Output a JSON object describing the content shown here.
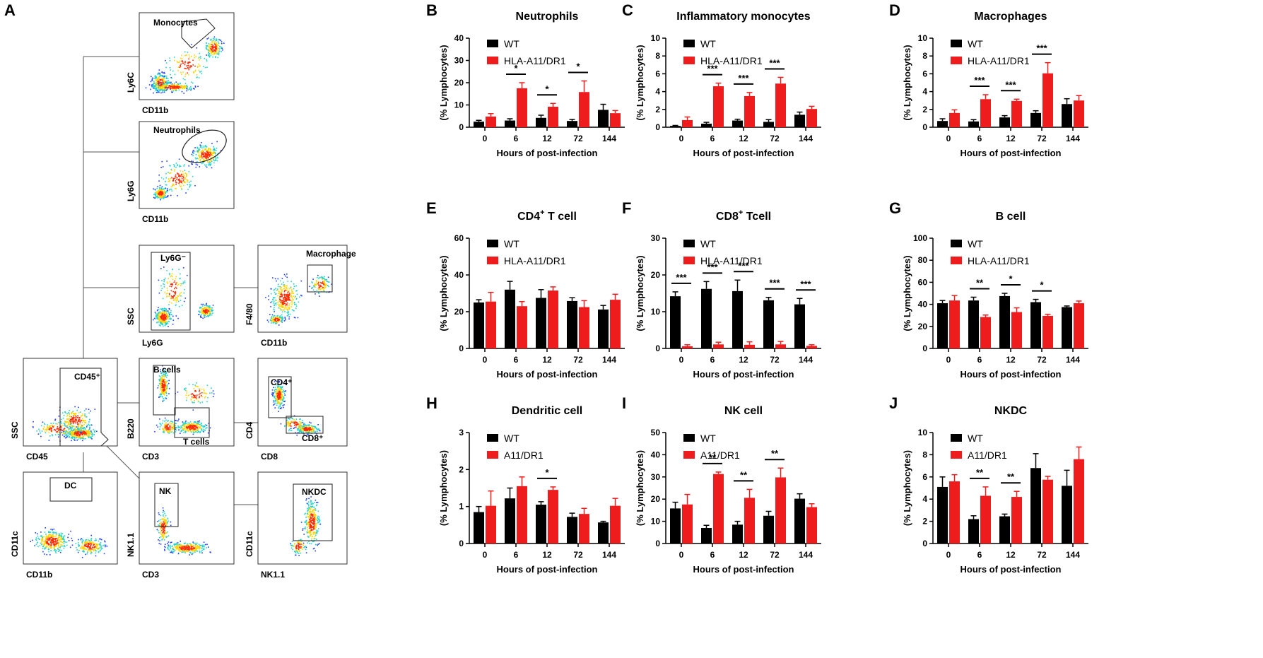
{
  "figure": {
    "panel_A": {
      "label": "A",
      "plots": [
        {
          "id": "mono",
          "gate_label": "Monocytes",
          "xlabel": "CD11b",
          "ylabel": "Ly6C"
        },
        {
          "id": "neut",
          "gate_label": "Neutrophils",
          "xlabel": "CD11b",
          "ylabel": "Ly6G"
        },
        {
          "id": "ly6gneg",
          "gate_label": "Ly6G⁻",
          "xlabel": "Ly6G",
          "ylabel": "SSC"
        },
        {
          "id": "macro",
          "gate_label": "Macrophage",
          "xlabel": "CD11b",
          "ylabel": "F4/80"
        },
        {
          "id": "cd45",
          "gate_label": "CD45⁺",
          "xlabel": "CD45",
          "ylabel": "SSC"
        },
        {
          "id": "bt",
          "gate_label": "B cells",
          "gate_label2": "T cells",
          "xlabel": "CD3",
          "ylabel": "B220"
        },
        {
          "id": "cd48",
          "gate_label": "CD4⁺",
          "gate_label2": "CD8⁺",
          "xlabel": "CD8",
          "ylabel": "CD4"
        },
        {
          "id": "dc",
          "gate_label": "DC",
          "xlabel": "CD11b",
          "ylabel": "CD11c"
        },
        {
          "id": "nk",
          "gate_label": "NK",
          "xlabel": "CD3",
          "ylabel": "NK1.1"
        },
        {
          "id": "nkdc",
          "gate_label": "NKDC",
          "xlabel": "NK1.1",
          "ylabel": "CD11c"
        }
      ]
    }
  },
  "chart_data": [
    {
      "panel": "B",
      "type": "bar",
      "title": "Neutrophils",
      "ylim": [
        0,
        40
      ],
      "yticks": [
        0,
        10,
        20,
        30,
        40
      ],
      "categories": [
        "0",
        "6",
        "12",
        "72",
        "144"
      ],
      "xlabel": "Hours of post-infection",
      "ylabel": "(% Lymphocytes)",
      "legend": [
        "WT",
        "HLA-A11/DR1"
      ],
      "series": [
        {
          "name": "WT",
          "color": "#000000",
          "values": [
            2.5,
            3,
            4.2,
            2.8,
            7.8
          ],
          "errors": [
            0.6,
            0.8,
            1.2,
            0.7,
            2.5
          ]
        },
        {
          "name": "HLA-A11/DR1",
          "color": "#ee1c1c",
          "values": [
            4.8,
            17.5,
            9.2,
            15.8,
            6.3
          ],
          "errors": [
            1.3,
            2.5,
            1.5,
            5,
            1.2
          ]
        }
      ],
      "significance": [
        {
          "index": 1,
          "label": "*"
        },
        {
          "index": 2,
          "label": "*"
        },
        {
          "index": 3,
          "label": "*"
        }
      ]
    },
    {
      "panel": "C",
      "type": "bar",
      "title": "Inflammatory monocytes",
      "ylim": [
        0,
        10
      ],
      "yticks": [
        0,
        2,
        4,
        6,
        8,
        10
      ],
      "categories": [
        "0",
        "6",
        "12",
        "72",
        "144"
      ],
      "xlabel": "Hours of post-infection",
      "ylabel": "(% Lymphocytes)",
      "legend": [
        "WT",
        "HLA-A11/DR1"
      ],
      "series": [
        {
          "name": "WT",
          "color": "#000000",
          "values": [
            0.15,
            0.4,
            0.75,
            0.6,
            1.4
          ],
          "errors": [
            0.05,
            0.15,
            0.15,
            0.25,
            0.3
          ]
        },
        {
          "name": "HLA-A11/DR1",
          "color": "#ee1c1c",
          "values": [
            0.8,
            4.6,
            3.5,
            4.9,
            2.05
          ],
          "errors": [
            0.35,
            0.35,
            0.4,
            0.7,
            0.3
          ]
        }
      ],
      "significance": [
        {
          "index": 1,
          "label": "***"
        },
        {
          "index": 2,
          "label": "***"
        },
        {
          "index": 3,
          "label": "***"
        }
      ]
    },
    {
      "panel": "D",
      "type": "bar",
      "title": "Macrophages",
      "ylim": [
        0,
        10
      ],
      "yticks": [
        0,
        2,
        4,
        6,
        8,
        10
      ],
      "categories": [
        "0",
        "6",
        "12",
        "72",
        "144"
      ],
      "xlabel": "Hours of post-infection",
      "ylabel": "(% Lymphocytes)",
      "legend": [
        "WT",
        "HLA-A11/DR1"
      ],
      "series": [
        {
          "name": "WT",
          "color": "#000000",
          "values": [
            0.7,
            0.65,
            1.1,
            1.6,
            2.6
          ],
          "errors": [
            0.25,
            0.2,
            0.2,
            0.25,
            0.6
          ]
        },
        {
          "name": "HLA-A11/DR1",
          "color": "#ee1c1c",
          "values": [
            1.6,
            3.15,
            2.95,
            6.05,
            3.0
          ],
          "errors": [
            0.35,
            0.5,
            0.2,
            1.2,
            0.55
          ]
        }
      ],
      "significance": [
        {
          "index": 1,
          "label": "***"
        },
        {
          "index": 2,
          "label": "***"
        },
        {
          "index": 3,
          "label": "***"
        }
      ]
    },
    {
      "panel": "E",
      "type": "bar",
      "title": "CD4",
      "title_sup": "+",
      "title_rest": " T cell",
      "ylim": [
        0,
        60
      ],
      "yticks": [
        0,
        20,
        40,
        60
      ],
      "categories": [
        "0",
        "6",
        "12",
        "72",
        "144"
      ],
      "xlabel": "Hours of post-infection",
      "ylabel": "(% Lymphocytes)",
      "legend": [
        "WT",
        "HLA-A11/DR1"
      ],
      "series": [
        {
          "name": "WT",
          "color": "#000000",
          "values": [
            25,
            32,
            27.5,
            25.8,
            21.2
          ],
          "errors": [
            1.5,
            4.5,
            4.5,
            1.8,
            2.2
          ]
        },
        {
          "name": "HLA-A11/DR1",
          "color": "#ee1c1c",
          "values": [
            25.5,
            23,
            31.5,
            22.5,
            26.5
          ],
          "errors": [
            5,
            2.5,
            2,
            3.5,
            3
          ]
        }
      ],
      "significance": []
    },
    {
      "panel": "F",
      "type": "bar",
      "title": "CD8",
      "title_sup": "+",
      "title_rest": " Tcell",
      "ylim": [
        0,
        30
      ],
      "yticks": [
        0,
        10,
        20,
        30
      ],
      "categories": [
        "0",
        "6",
        "12",
        "72",
        "144"
      ],
      "xlabel": "Hours of post-infection",
      "ylabel": "(% Lymphocytes)",
      "legend": [
        "WT",
        "HLA-A11/DR1"
      ],
      "series": [
        {
          "name": "WT",
          "color": "#000000",
          "values": [
            14.2,
            16.2,
            15.6,
            13.1,
            12
          ],
          "errors": [
            1.2,
            2,
            3,
            0.8,
            1.6
          ]
        },
        {
          "name": "HLA-A11/DR1",
          "color": "#ee1c1c",
          "values": [
            0.6,
            1.1,
            1.0,
            1.1,
            0.7
          ],
          "errors": [
            0.4,
            0.6,
            0.8,
            0.8,
            0.3
          ]
        }
      ],
      "significance": [
        {
          "index": 0,
          "label": "***"
        },
        {
          "index": 1,
          "label": "***"
        },
        {
          "index": 2,
          "label": "***"
        },
        {
          "index": 3,
          "label": "***"
        },
        {
          "index": 4,
          "label": "***"
        }
      ]
    },
    {
      "panel": "G",
      "type": "bar",
      "title": "B cell",
      "ylim": [
        0,
        100
      ],
      "yticks": [
        0,
        20,
        40,
        60,
        80,
        100
      ],
      "categories": [
        "0",
        "6",
        "12",
        "72",
        "144"
      ],
      "xlabel": "Hours of post-infection",
      "ylabel": "(% Lymphocytes)",
      "legend": [
        "WT",
        "HLA-A11/DR1"
      ],
      "series": [
        {
          "name": "WT",
          "color": "#000000",
          "values": [
            41,
            43.5,
            47.5,
            42,
            37.5
          ],
          "errors": [
            2.5,
            3,
            2.5,
            2.5,
            1
          ]
        },
        {
          "name": "HLA-A11/DR1",
          "color": "#ee1c1c",
          "values": [
            43.5,
            28.5,
            33,
            29.5,
            41
          ],
          "errors": [
            4.5,
            1.8,
            3.8,
            1.5,
            2
          ]
        }
      ],
      "significance": [
        {
          "index": 1,
          "label": "**"
        },
        {
          "index": 2,
          "label": "*"
        },
        {
          "index": 3,
          "label": "*"
        }
      ]
    },
    {
      "panel": "H",
      "type": "bar",
      "title": "Dendritic cell",
      "ylim": [
        0,
        3
      ],
      "yticks": [
        0,
        1,
        2,
        3
      ],
      "categories": [
        "0",
        "6",
        "12",
        "72",
        "144"
      ],
      "xlabel": "Hours of post-infection",
      "ylabel": "(% Lymphocytes)",
      "legend": [
        "WT",
        "A11/DR1"
      ],
      "series": [
        {
          "name": "WT",
          "color": "#000000",
          "values": [
            0.85,
            1.22,
            1.05,
            0.72,
            0.57
          ],
          "errors": [
            0.15,
            0.28,
            0.08,
            0.1,
            0.03
          ]
        },
        {
          "name": "A11/DR1",
          "color": "#ee1c1c",
          "values": [
            1.02,
            1.55,
            1.45,
            0.8,
            1.02
          ],
          "errors": [
            0.4,
            0.25,
            0.08,
            0.15,
            0.2
          ]
        }
      ],
      "significance": [
        {
          "index": 2,
          "label": "*"
        }
      ]
    },
    {
      "panel": "I",
      "type": "bar",
      "title": "NK cell",
      "ylim": [
        0,
        50
      ],
      "yticks": [
        0,
        10,
        20,
        30,
        40,
        50
      ],
      "categories": [
        "0",
        "6",
        "12",
        "72",
        "144"
      ],
      "xlabel": "Hours of post-infection",
      "ylabel": "(% Lymphocytes)",
      "legend": [
        "WT",
        "A11/DR1"
      ],
      "series": [
        {
          "name": "WT",
          "color": "#000000",
          "values": [
            15.8,
            7,
            8.5,
            12.5,
            20.2
          ],
          "errors": [
            2.8,
            1.2,
            1.5,
            2,
            2.2
          ]
        },
        {
          "name": "A11/DR1",
          "color": "#ee1c1c",
          "values": [
            17.6,
            31.3,
            20.6,
            29.8,
            16.4
          ],
          "errors": [
            4.5,
            0.9,
            3.8,
            4.2,
            1.5
          ]
        }
      ],
      "significance": [
        {
          "index": 1,
          "label": "**"
        },
        {
          "index": 2,
          "label": "**"
        },
        {
          "index": 3,
          "label": "**"
        }
      ]
    },
    {
      "panel": "J",
      "type": "bar",
      "title": "NKDC",
      "ylim": [
        0,
        10
      ],
      "yticks": [
        0,
        2,
        4,
        6,
        8,
        10
      ],
      "categories": [
        "0",
        "6",
        "12",
        "72",
        "144"
      ],
      "xlabel": "Hours of post-infection",
      "ylabel": "(% Lymphocytes)",
      "legend": [
        "WT",
        "A11/DR1"
      ],
      "series": [
        {
          "name": "WT",
          "color": "#000000",
          "values": [
            5.1,
            2.2,
            2.45,
            6.8,
            5.2
          ],
          "errors": [
            0.9,
            0.3,
            0.2,
            1.3,
            1.4
          ]
        },
        {
          "name": "A11/DR1",
          "color": "#ee1c1c",
          "values": [
            5.6,
            4.3,
            4.2,
            5.75,
            7.6
          ],
          "errors": [
            0.6,
            0.8,
            0.5,
            0.3,
            1.1
          ]
        }
      ],
      "significance": [
        {
          "index": 1,
          "label": "**"
        },
        {
          "index": 2,
          "label": "**"
        }
      ]
    }
  ]
}
